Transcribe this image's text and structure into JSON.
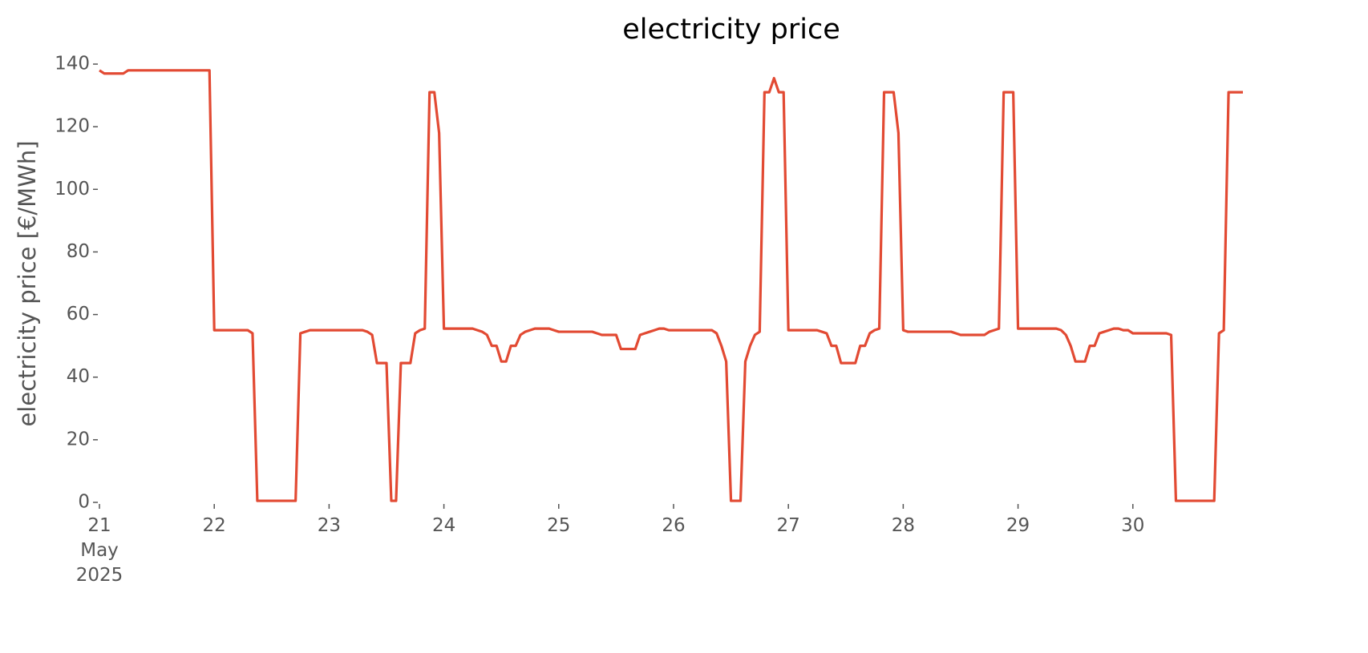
{
  "chart_data": {
    "type": "line",
    "title": "electricity price",
    "y_label": "electricity price [€/MWh]",
    "xlim": [
      0,
      239
    ],
    "ylim": [
      0,
      140
    ],
    "xticks": [
      {
        "value": 0,
        "label": "21\nMay\n2025"
      },
      {
        "value": 24,
        "label": "22"
      },
      {
        "value": 48,
        "label": "23"
      },
      {
        "value": 72,
        "label": "24"
      },
      {
        "value": 96,
        "label": "25"
      },
      {
        "value": 120,
        "label": "26"
      },
      {
        "value": 144,
        "label": "27"
      },
      {
        "value": 168,
        "label": "28"
      },
      {
        "value": 192,
        "label": "29"
      },
      {
        "value": 216,
        "label": "30"
      }
    ],
    "yticks": [
      0,
      20,
      40,
      60,
      80,
      100,
      120,
      140
    ],
    "grid": false,
    "x": [
      0,
      1,
      2,
      3,
      4,
      5,
      6,
      7,
      8,
      9,
      10,
      11,
      12,
      13,
      14,
      15,
      16,
      17,
      18,
      19,
      20,
      21,
      22,
      23,
      24,
      25,
      26,
      27,
      28,
      29,
      30,
      31,
      32,
      33,
      34,
      35,
      36,
      37,
      38,
      39,
      40,
      41,
      42,
      43,
      44,
      45,
      46,
      47,
      48,
      49,
      50,
      51,
      52,
      53,
      54,
      55,
      56,
      57,
      58,
      59,
      60,
      61,
      62,
      63,
      64,
      65,
      66,
      67,
      68,
      69,
      70,
      71,
      72,
      73,
      74,
      75,
      76,
      77,
      78,
      79,
      80,
      81,
      82,
      83,
      84,
      85,
      86,
      87,
      88,
      89,
      90,
      91,
      92,
      93,
      94,
      95,
      96,
      97,
      98,
      99,
      100,
      101,
      102,
      103,
      104,
      105,
      106,
      107,
      108,
      109,
      110,
      111,
      112,
      113,
      114,
      115,
      116,
      117,
      118,
      119,
      120,
      121,
      122,
      123,
      124,
      125,
      126,
      127,
      128,
      129,
      130,
      131,
      132,
      133,
      134,
      135,
      136,
      137,
      138,
      139,
      140,
      141,
      142,
      143,
      144,
      145,
      146,
      147,
      148,
      149,
      150,
      151,
      152,
      153,
      154,
      155,
      156,
      157,
      158,
      159,
      160,
      161,
      162,
      163,
      164,
      165,
      166,
      167,
      168,
      169,
      170,
      171,
      172,
      173,
      174,
      175,
      176,
      177,
      178,
      179,
      180,
      181,
      182,
      183,
      184,
      185,
      186,
      187,
      188,
      189,
      190,
      191,
      192,
      193,
      194,
      195,
      196,
      197,
      198,
      199,
      200,
      201,
      202,
      203,
      204,
      205,
      206,
      207,
      208,
      209,
      210,
      211,
      212,
      213,
      214,
      215,
      216,
      217,
      218,
      219,
      220,
      221,
      222,
      223,
      224,
      225,
      226,
      227,
      228,
      229,
      230,
      231,
      232,
      233,
      234,
      235,
      236,
      237,
      238,
      239
    ],
    "series": [
      {
        "name": "electricity price",
        "color": "#e24a33",
        "values": [
          138,
          137,
          137,
          137,
          137,
          137,
          138,
          138,
          138,
          138,
          138,
          138,
          138,
          138,
          138,
          138,
          138,
          138,
          138,
          138,
          138,
          138,
          138,
          138,
          55,
          55,
          55,
          55,
          55,
          55,
          55,
          55,
          54,
          0.5,
          0.5,
          0.5,
          0.5,
          0.5,
          0.5,
          0.5,
          0.5,
          0.5,
          54,
          54.5,
          55,
          55,
          55,
          55,
          55,
          55,
          55,
          55,
          55,
          55,
          55,
          55,
          54.5,
          53.5,
          44.5,
          44.5,
          44.5,
          0.5,
          0.5,
          44.5,
          44.5,
          44.5,
          54,
          55,
          55.5,
          131,
          131,
          118,
          55.5,
          55.5,
          55.5,
          55.5,
          55.5,
          55.5,
          55.5,
          55,
          54.5,
          53.5,
          50,
          50,
          45,
          45,
          50,
          50,
          53.5,
          54.5,
          55,
          55.5,
          55.5,
          55.5,
          55.5,
          55,
          54.5,
          54.5,
          54.5,
          54.5,
          54.5,
          54.5,
          54.5,
          54.5,
          54,
          53.5,
          53.5,
          53.5,
          53.5,
          49,
          49,
          49,
          49,
          53.5,
          54,
          54.5,
          55,
          55.5,
          55.5,
          55,
          55,
          55,
          55,
          55,
          55,
          55,
          55,
          55,
          55,
          54,
          50,
          45,
          0.5,
          0.5,
          0.5,
          45,
          50,
          53.5,
          54.5,
          131,
          131,
          135.5,
          131,
          131,
          55,
          55,
          55,
          55,
          55,
          55,
          55,
          54.5,
          54,
          50,
          50,
          44.5,
          44.5,
          44.5,
          44.5,
          50,
          50,
          54,
          55,
          55.5,
          131,
          131,
          131,
          118,
          55,
          54.5,
          54.5,
          54.5,
          54.5,
          54.5,
          54.5,
          54.5,
          54.5,
          54.5,
          54.5,
          54,
          53.5,
          53.5,
          53.5,
          53.5,
          53.5,
          53.5,
          54.5,
          55,
          55.5,
          131,
          131,
          131,
          55.5,
          55.5,
          55.5,
          55.5,
          55.5,
          55.5,
          55.5,
          55.5,
          55.5,
          55,
          53.5,
          50,
          45,
          45,
          45,
          50,
          50,
          54,
          54.5,
          55,
          55.5,
          55.5,
          55,
          55,
          54,
          54,
          54,
          54,
          54,
          54,
          54,
          54,
          53.5,
          0.5,
          0.5,
          0.5,
          0.5,
          0.5,
          0.5,
          0.5,
          0.5,
          0.5,
          54,
          55,
          131,
          131,
          131,
          131
        ]
      }
    ]
  }
}
